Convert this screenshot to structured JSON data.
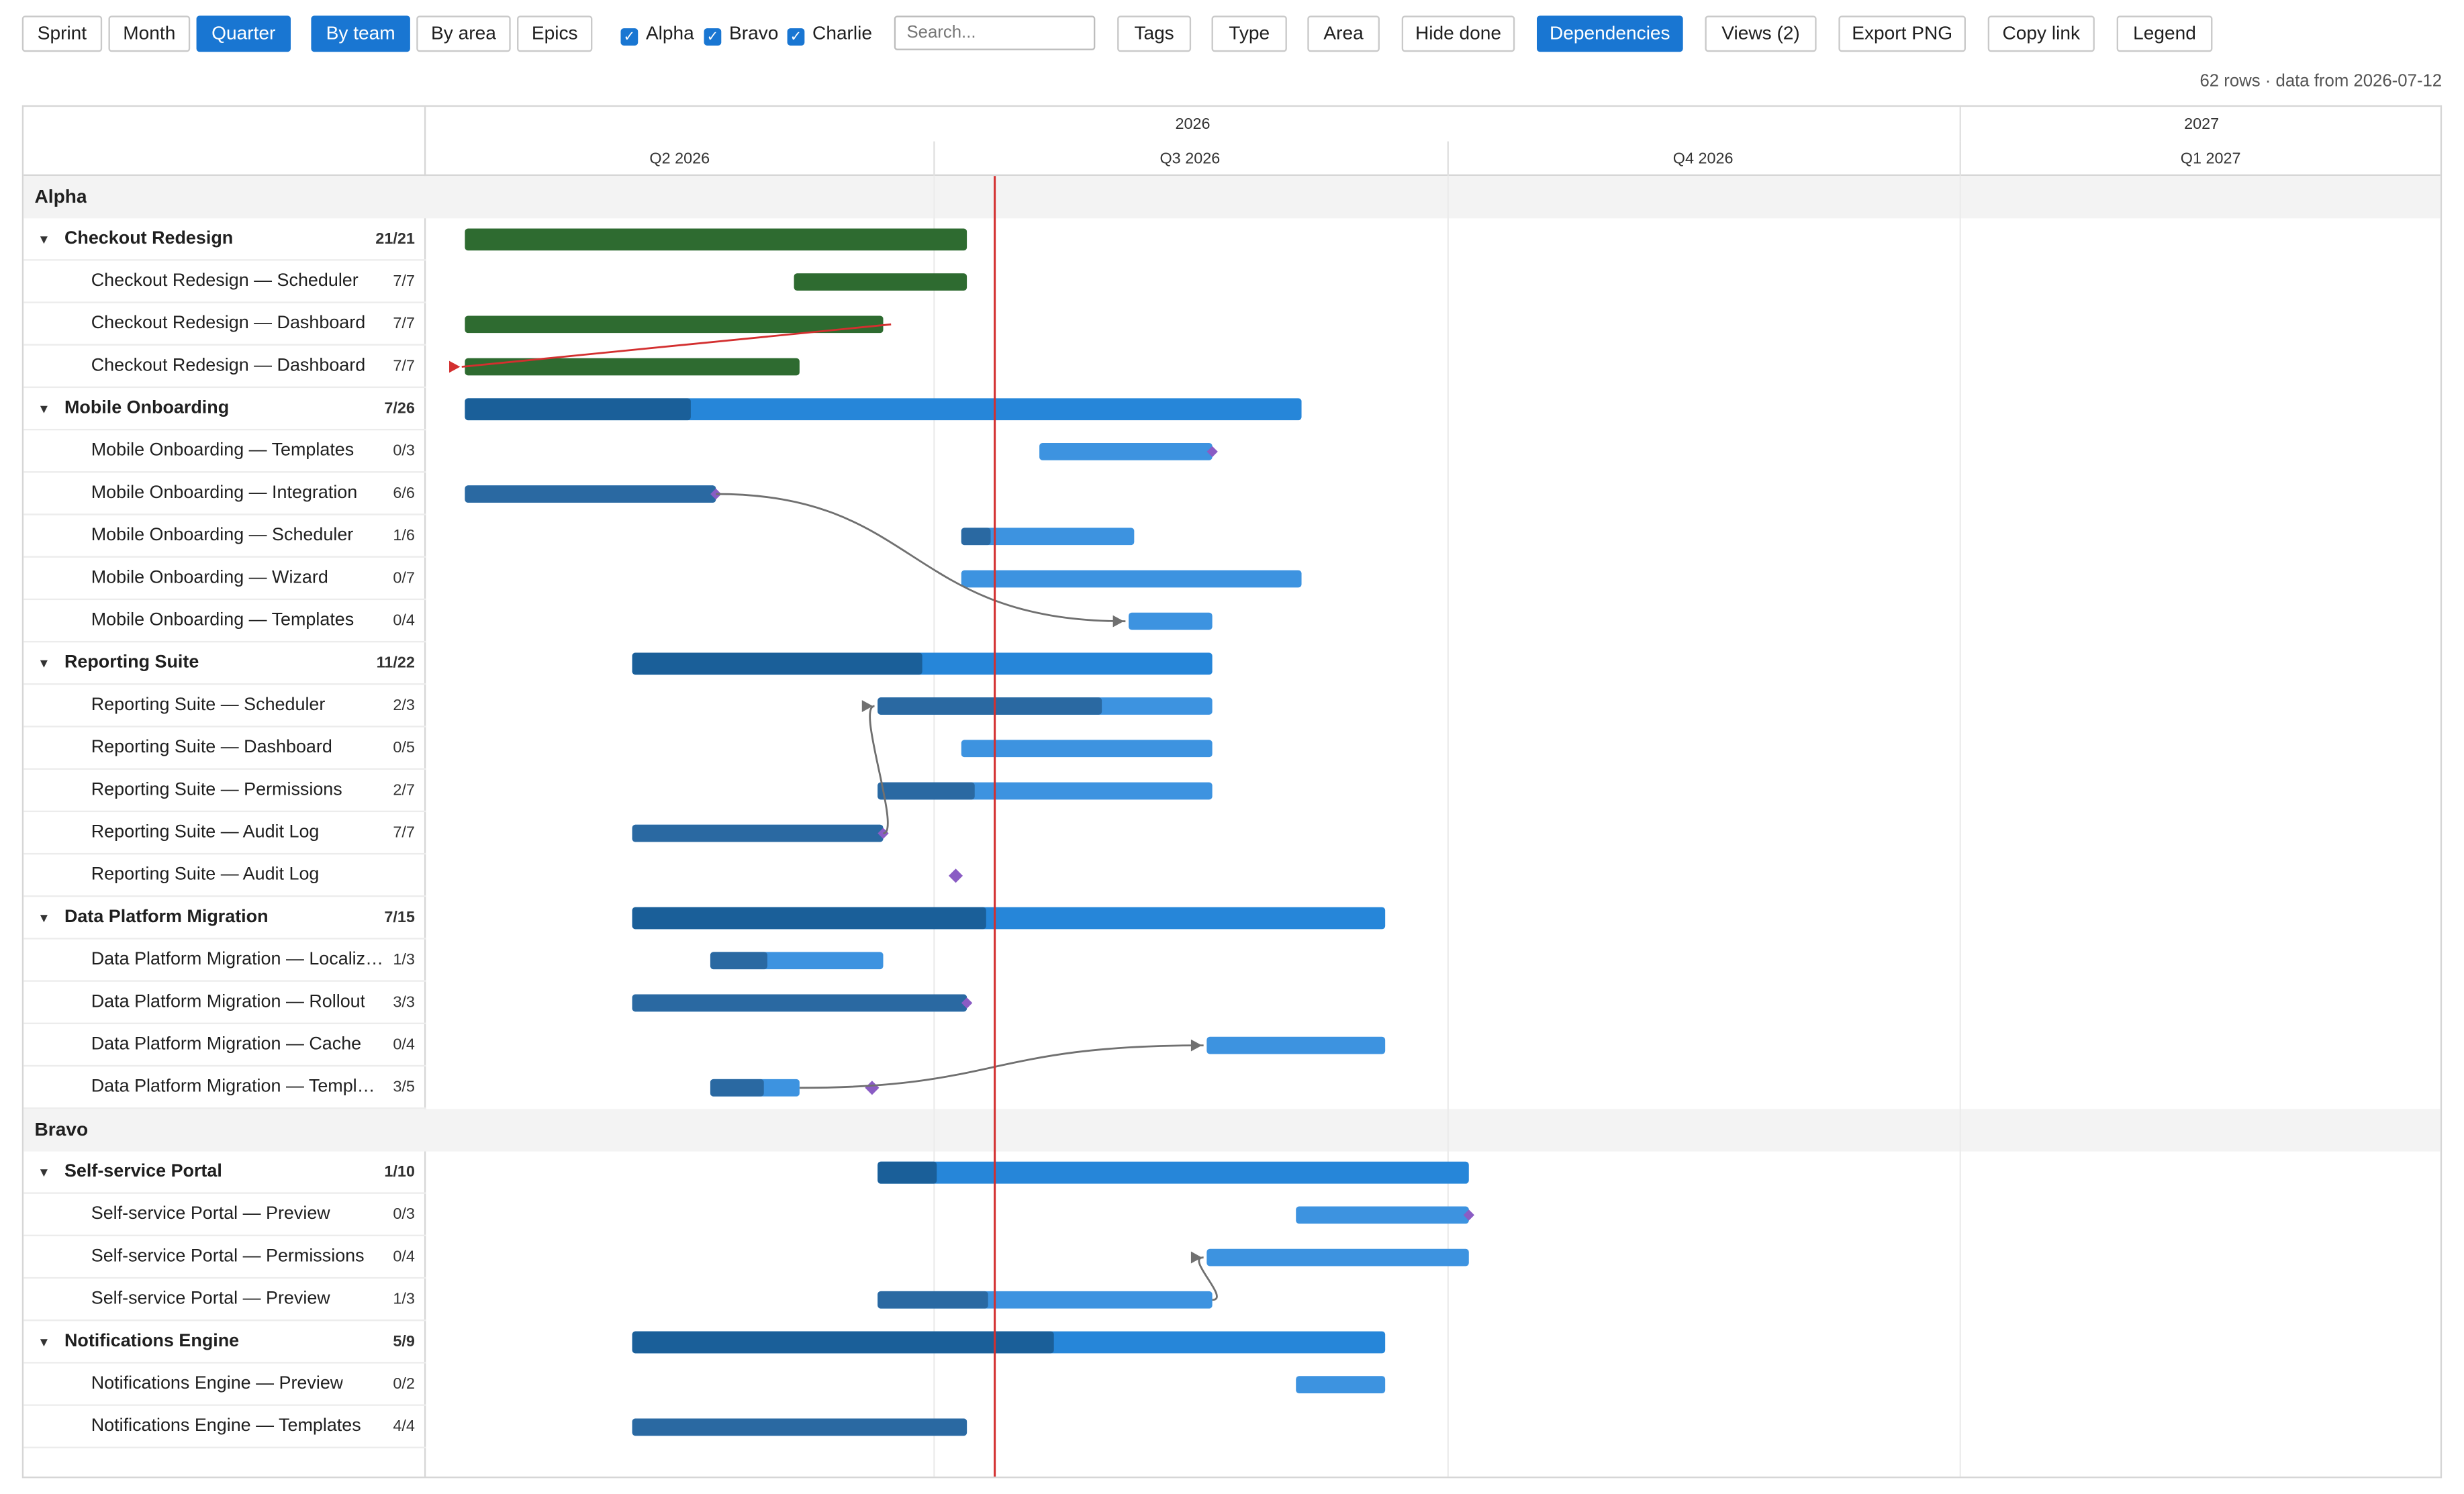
{
  "toolbar": {
    "granularity": [
      {
        "label": "Sprint",
        "active": false
      },
      {
        "label": "Month",
        "active": false
      },
      {
        "label": "Quarter",
        "active": true
      }
    ],
    "grouping": [
      {
        "label": "By team",
        "active": true
      },
      {
        "label": "By area",
        "active": false
      },
      {
        "label": "Epics",
        "active": false
      }
    ],
    "team_filters": [
      {
        "label": "Alpha",
        "checked": true
      },
      {
        "label": "Bravo",
        "checked": true
      },
      {
        "label": "Charlie",
        "checked": true
      }
    ],
    "search_placeholder": "Search...",
    "filter_buttons": [
      "Tags",
      "Type",
      "Area",
      "Hide done"
    ],
    "dependencies_label": "Dependencies",
    "dependencies_active": true,
    "views_label": "Views (2)",
    "export_label": "Export PNG",
    "copy_link_label": "Copy link",
    "legend_label": "Legend"
  },
  "meta_text": "62 rows · data from 2026-07-12",
  "timeline": {
    "years": [
      {
        "label": "2026",
        "start": "2026-04-01",
        "end": "2026-12-31"
      },
      {
        "label": "2027",
        "start": "2027-01-01",
        "end": "2027-03-31"
      }
    ],
    "quarters": [
      {
        "label": "Q2 2026",
        "start": "2026-04-01",
        "end": "2026-06-30"
      },
      {
        "label": "Q3 2026",
        "start": "2026-07-01",
        "end": "2026-09-30"
      },
      {
        "label": "Q4 2026",
        "start": "2026-10-01",
        "end": "2026-12-31"
      },
      {
        "label": "Q1 2027",
        "start": "2027-01-01",
        "end": "2027-03-31"
      }
    ],
    "today": "2026-07-12"
  },
  "colors": {
    "done_green": "#2e6b30",
    "epic_progress": "#1a5f99",
    "epic_bar": "#2686d9",
    "task_progress": "#2a69a2",
    "task_bar": "#3d93e0",
    "milestone": "#8a5cc4",
    "dependency": "#707070",
    "today_line": "#d32f2f",
    "conflict": "#d32f2f"
  },
  "rows": [
    {
      "kind": "group",
      "name": "Alpha"
    },
    {
      "kind": "epic",
      "name": "Checkout Redesign",
      "count": "21/21",
      "start": "2026-04-08",
      "end": "2026-07-06",
      "progress": 1.0,
      "done": true
    },
    {
      "kind": "task",
      "name": "Checkout Redesign — Scheduler",
      "count": "7/7",
      "start": "2026-06-06",
      "end": "2026-07-06",
      "progress": 1.0,
      "done": true
    },
    {
      "kind": "task",
      "name": "Checkout Redesign — Dashboard",
      "count": "7/7",
      "start": "2026-04-08",
      "end": "2026-06-21",
      "progress": 1.0,
      "done": true
    },
    {
      "kind": "task",
      "name": "Checkout Redesign — Dashboard",
      "count": "7/7",
      "start": "2026-04-08",
      "end": "2026-06-06",
      "progress": 1.0,
      "done": true
    },
    {
      "kind": "epic",
      "name": "Mobile Onboarding",
      "count": "7/26",
      "start": "2026-04-08",
      "end": "2026-09-04",
      "progress": 0.27
    },
    {
      "kind": "task",
      "name": "Mobile Onboarding — Templates",
      "count": "0/3",
      "start": "2026-07-20",
      "end": "2026-08-19",
      "progress": 0,
      "milestone_end": true
    },
    {
      "kind": "task",
      "name": "Mobile Onboarding — Integration",
      "count": "6/6",
      "start": "2026-04-08",
      "end": "2026-05-22",
      "progress": 1.0,
      "milestone_end": true
    },
    {
      "kind": "task",
      "name": "Mobile Onboarding — Scheduler",
      "count": "1/6",
      "start": "2026-07-06",
      "end": "2026-08-05",
      "progress": 0.17
    },
    {
      "kind": "task",
      "name": "Mobile Onboarding — Wizard",
      "count": "0/7",
      "start": "2026-07-06",
      "end": "2026-09-04",
      "progress": 0
    },
    {
      "kind": "task",
      "name": "Mobile Onboarding — Templates",
      "count": "0/4",
      "start": "2026-08-05",
      "end": "2026-08-19",
      "progress": 0
    },
    {
      "kind": "epic",
      "name": "Reporting Suite",
      "count": "11/22",
      "start": "2026-05-08",
      "end": "2026-08-19",
      "progress": 0.5
    },
    {
      "kind": "task",
      "name": "Reporting Suite — Scheduler",
      "count": "2/3",
      "start": "2026-06-21",
      "end": "2026-08-19",
      "progress": 0.67
    },
    {
      "kind": "task",
      "name": "Reporting Suite — Dashboard",
      "count": "0/5",
      "start": "2026-07-06",
      "end": "2026-08-19",
      "progress": 0
    },
    {
      "kind": "task",
      "name": "Reporting Suite — Permissions",
      "count": "2/7",
      "start": "2026-06-21",
      "end": "2026-08-19",
      "progress": 0.29
    },
    {
      "kind": "task",
      "name": "Reporting Suite — Audit Log",
      "count": "7/7",
      "start": "2026-05-08",
      "end": "2026-06-21",
      "progress": 1.0,
      "milestone_end": true
    },
    {
      "kind": "task",
      "name": "Reporting Suite — Audit Log",
      "count": "",
      "milestone": "2026-07-05"
    },
    {
      "kind": "epic",
      "name": "Data Platform Migration",
      "count": "7/15",
      "start": "2026-05-08",
      "end": "2026-09-19",
      "progress": 0.47
    },
    {
      "kind": "task",
      "name": "Data Platform Migration — Localization",
      "count": "1/3",
      "start": "2026-05-22",
      "end": "2026-06-21",
      "progress": 0.33
    },
    {
      "kind": "task",
      "name": "Data Platform Migration — Rollout",
      "count": "3/3",
      "start": "2026-05-08",
      "end": "2026-07-06",
      "progress": 1.0,
      "milestone_end": true
    },
    {
      "kind": "task",
      "name": "Data Platform Migration — Cache",
      "count": "0/4",
      "start": "2026-08-19",
      "end": "2026-09-19",
      "progress": 0
    },
    {
      "kind": "task",
      "name": "Data Platform Migration — Templates",
      "count": "3/5",
      "start": "2026-05-22",
      "end": "2026-06-06",
      "progress": 0.6,
      "milestone": "2026-06-20"
    },
    {
      "kind": "group",
      "name": "Bravo"
    },
    {
      "kind": "epic",
      "name": "Self-service Portal",
      "count": "1/10",
      "start": "2026-06-21",
      "end": "2026-10-04",
      "progress": 0.1
    },
    {
      "kind": "task",
      "name": "Self-service Portal — Preview",
      "count": "0/3",
      "start": "2026-09-04",
      "end": "2026-10-04",
      "progress": 0,
      "milestone_end": true
    },
    {
      "kind": "task",
      "name": "Self-service Portal — Permissions",
      "count": "0/4",
      "start": "2026-08-19",
      "end": "2026-10-04",
      "progress": 0
    },
    {
      "kind": "task",
      "name": "Self-service Portal — Preview",
      "count": "1/3",
      "start": "2026-06-21",
      "end": "2026-08-19",
      "progress": 0.33
    },
    {
      "kind": "epic",
      "name": "Notifications Engine",
      "count": "5/9",
      "start": "2026-05-08",
      "end": "2026-09-19",
      "progress": 0.56
    },
    {
      "kind": "task",
      "name": "Notifications Engine — Preview",
      "count": "0/2",
      "start": "2026-09-04",
      "end": "2026-09-19",
      "progress": 0
    },
    {
      "kind": "task",
      "name": "Notifications Engine — Templates",
      "count": "4/4",
      "start": "2026-05-08",
      "end": "2026-07-06",
      "progress": 1.0
    }
  ],
  "dependencies": [
    {
      "from": 7,
      "to": 10
    },
    {
      "from": 15,
      "to": 12
    },
    {
      "from": 21,
      "to": 20
    },
    {
      "from": 26,
      "to": 25
    },
    {
      "from": 3,
      "to": 4,
      "conflict": true
    }
  ]
}
